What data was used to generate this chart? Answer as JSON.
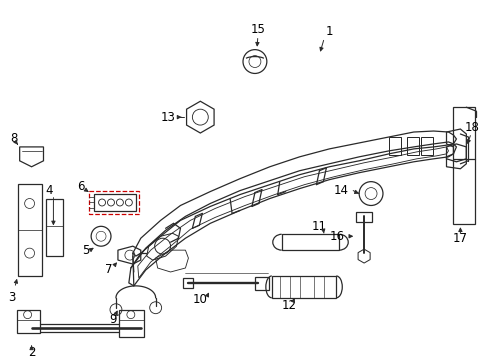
{
  "bg_color": "#ffffff",
  "line_color": "#2a2a2a",
  "red_color": "#cc0000",
  "figsize": [
    4.89,
    3.6
  ],
  "dpi": 100,
  "label_fs": 8.0,
  "lw": 0.9
}
